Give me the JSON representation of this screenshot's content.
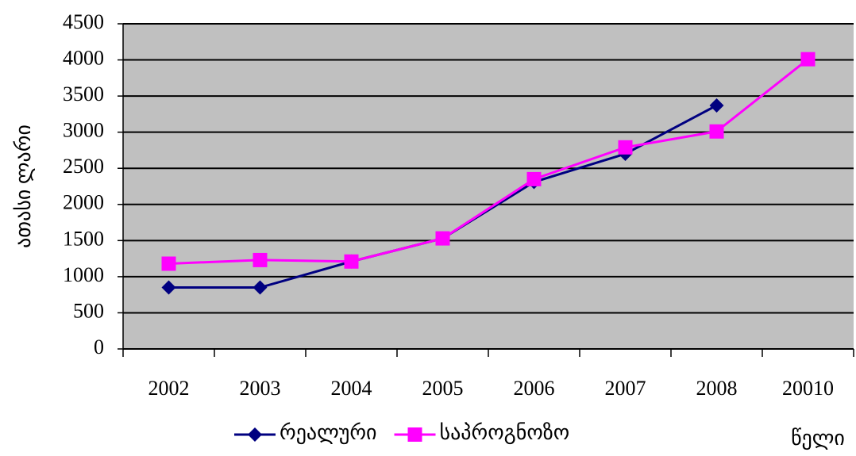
{
  "chart_data": {
    "type": "line",
    "categories": [
      "2002",
      "2003",
      "2004",
      "2005",
      "2006",
      "2007",
      "2008",
      "20010"
    ],
    "series": [
      {
        "name": "რეალური",
        "color": "#000080",
        "marker": "diamond",
        "values": [
          850,
          850,
          1210,
          1530,
          2310,
          2700,
          3370,
          null
        ]
      },
      {
        "name": "საპროგნოზო",
        "color": "#ff00ff",
        "marker": "square",
        "values": [
          1180,
          1230,
          1210,
          1530,
          2350,
          2790,
          3010,
          4010
        ]
      }
    ],
    "y_label": "ათასი ლარი",
    "x_label": "წელი",
    "ylim": [
      0,
      4500
    ],
    "yticks": [
      0,
      500,
      1000,
      1500,
      2000,
      2500,
      3000,
      3500,
      4000,
      4500
    ],
    "grid": true,
    "plot_background": "#c0c0c0",
    "legend": "bottom"
  }
}
